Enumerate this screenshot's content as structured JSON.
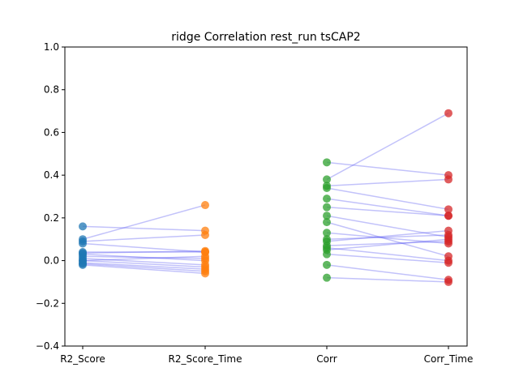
{
  "chart_data": {
    "type": "scatter",
    "title": "ridge Correlation rest_run tsCAP2",
    "xlabel": "",
    "ylabel": "",
    "categories": [
      "R2_Score",
      "R2_Score_Time",
      "Corr",
      "Corr_Time"
    ],
    "ylim": [
      -0.4,
      1.0
    ],
    "yticks": [
      "−0.4",
      "−0.2",
      "0.0",
      "0.2",
      "0.4",
      "0.6",
      "0.8",
      "1.0"
    ],
    "yticks_values": [
      -0.4,
      -0.2,
      0.0,
      0.2,
      0.4,
      0.6,
      0.8,
      1.0
    ],
    "grid": false,
    "colors": {
      "R2_Score": "#1f77b4",
      "R2_Score_Time": "#ff7f0e",
      "Corr": "#2ca02c",
      "Corr_Time": "#d62728",
      "connector": "#5050f0"
    },
    "pairs_r2": [
      [
        0.16,
        0.14
      ],
      [
        0.1,
        0.26
      ],
      [
        0.09,
        0.12
      ],
      [
        0.08,
        0.04
      ],
      [
        0.04,
        0.04
      ],
      [
        0.03,
        0.0
      ],
      [
        0.02,
        0.01
      ],
      [
        0.01,
        -0.02
      ],
      [
        0.0,
        0.02
      ],
      [
        0.0,
        -0.03
      ],
      [
        -0.01,
        -0.04
      ],
      [
        -0.02,
        -0.06
      ],
      [
        -0.015,
        -0.05
      ],
      [
        0.035,
        0.045
      ]
    ],
    "pairs_corr": [
      [
        0.46,
        0.4
      ],
      [
        0.38,
        0.69
      ],
      [
        0.35,
        0.38
      ],
      [
        0.34,
        0.24
      ],
      [
        0.29,
        0.21
      ],
      [
        0.25,
        0.21
      ],
      [
        0.21,
        0.11
      ],
      [
        0.18,
        0.02
      ],
      [
        0.13,
        0.08
      ],
      [
        0.1,
        0.12
      ],
      [
        0.09,
        0.14
      ],
      [
        0.07,
        0.09
      ],
      [
        0.06,
        0.0
      ],
      [
        0.05,
        0.1
      ],
      [
        0.03,
        -0.01
      ],
      [
        -0.02,
        -0.09
      ],
      [
        -0.08,
        -0.1
      ]
    ]
  }
}
